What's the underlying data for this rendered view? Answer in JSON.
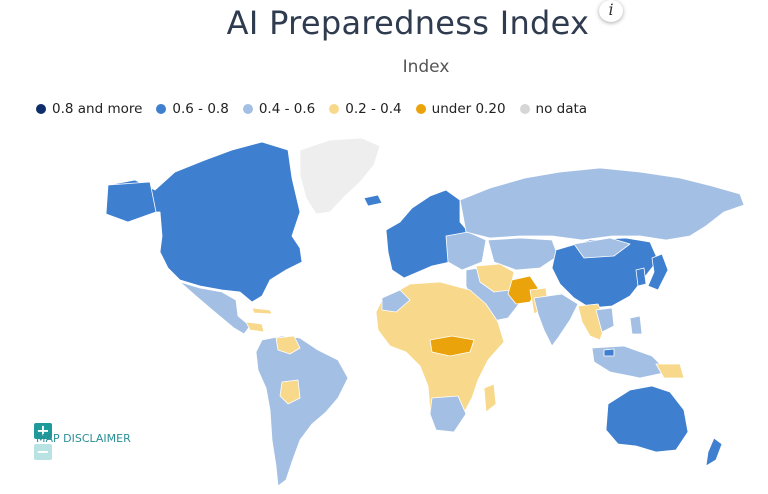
{
  "title": "AI Preparedness Index",
  "subtitle": "Index",
  "info_label": "i",
  "legend": [
    {
      "label": "0.8 and more",
      "color": "#0d2d6b"
    },
    {
      "label": "0.6 - 0.8",
      "color": "#3f7fd0"
    },
    {
      "label": "0.4 - 0.6",
      "color": "#a3bfe4"
    },
    {
      "label": "0.2 - 0.4",
      "color": "#f8d98c"
    },
    {
      "label": "under 0.20",
      "color": "#eaa30a"
    },
    {
      "label": "no data",
      "color": "#d6d6d6"
    }
  ],
  "zoom": {
    "in_label": "+",
    "out_label": "−"
  },
  "disclaimer": "MAP DISCLAIMER"
}
